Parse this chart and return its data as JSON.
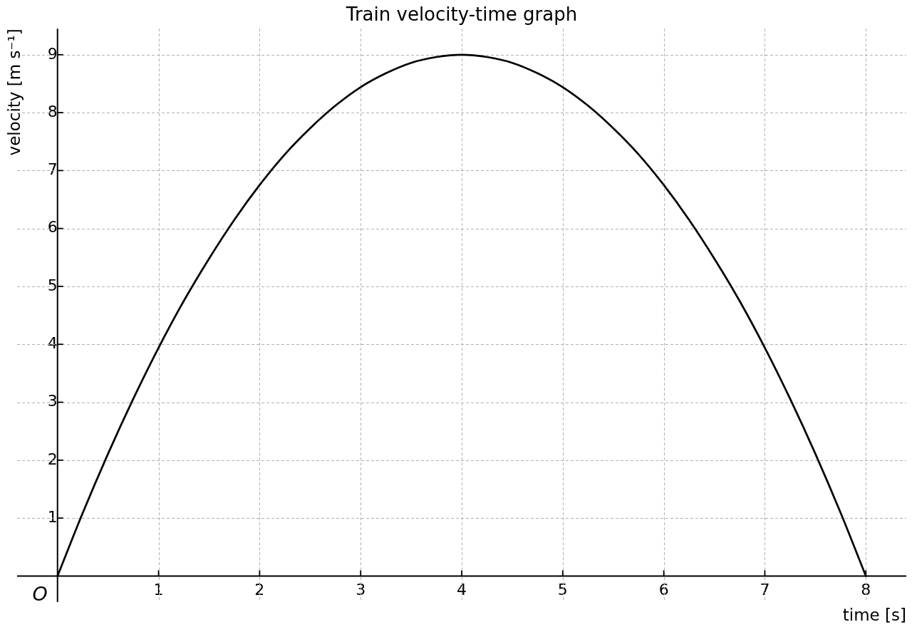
{
  "chart_data": {
    "type": "line",
    "title": "Train velocity-time graph",
    "xlabel": "time [s]",
    "ylabel": "velocity [m s⁻¹]",
    "x": [
      0,
      0.25,
      0.5,
      0.75,
      1,
      1.25,
      1.5,
      1.75,
      2,
      2.25,
      2.5,
      2.75,
      3,
      3.25,
      3.5,
      3.75,
      4,
      4.25,
      4.5,
      4.75,
      5,
      5.25,
      5.5,
      5.75,
      6,
      6.25,
      6.5,
      6.75,
      7,
      7.25,
      7.5,
      7.75,
      8
    ],
    "series": [
      {
        "color": "#000000",
        "values": [
          0,
          1.09,
          2.11,
          3.06,
          3.94,
          4.75,
          5.48,
          6.15,
          6.75,
          7.28,
          7.73,
          8.12,
          8.44,
          8.68,
          8.86,
          8.96,
          9,
          8.96,
          8.86,
          8.68,
          8.44,
          8.12,
          7.73,
          7.28,
          6.75,
          6.15,
          5.48,
          4.75,
          3.94,
          3.06,
          2.11,
          1.09,
          0
        ]
      }
    ],
    "xlim": [
      -0.4,
      8.4
    ],
    "ylim": [
      -0.45,
      9.45
    ],
    "xticks": [
      1,
      2,
      3,
      4,
      5,
      6,
      7,
      8
    ],
    "yticks": [
      1,
      2,
      3,
      4,
      5,
      6,
      7,
      8,
      9
    ],
    "grid": true,
    "annotations": [
      {
        "text": "O",
        "x": 0,
        "y": 0
      }
    ]
  }
}
